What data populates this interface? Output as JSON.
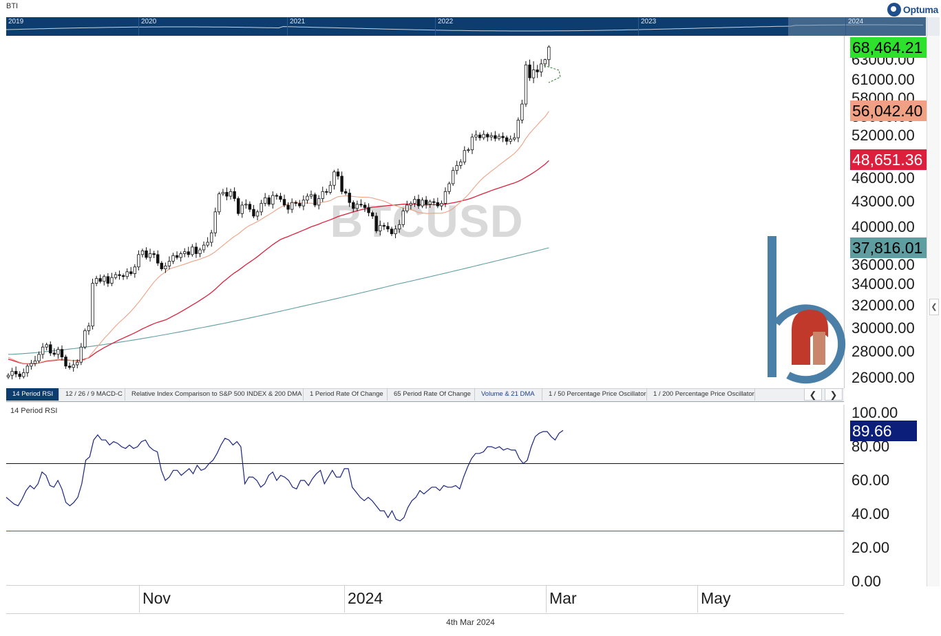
{
  "symbol": "BTI",
  "brand": "Optuma",
  "navigator": {
    "years": [
      "2019",
      "2020",
      "2021",
      "2022",
      "2023",
      "2024"
    ]
  },
  "watermark": "BTCUSD",
  "price_axis": {
    "ticks": [
      "63000.00",
      "61000.00",
      "58000.00",
      "55000.00",
      "52000.00",
      "49000.00",
      "46000.00",
      "43000.00",
      "40000.00",
      "36000.00",
      "34000.00",
      "32000.00",
      "30000.00",
      "28000.00",
      "26000.00"
    ]
  },
  "price_tags": [
    {
      "label": "68,464.21",
      "value": 68464.21,
      "bg": "#2de12d",
      "fg": "#000000"
    },
    {
      "label": "56,042.40",
      "value": 56042.4,
      "bg": "#f0a184",
      "fg": "#000000"
    },
    {
      "label": "48,651.36",
      "value": 48651.36,
      "bg": "#dc1f3c",
      "fg": "#ffffff"
    },
    {
      "label": "37,816.01",
      "value": 37816.01,
      "bg": "#5f9ea0",
      "fg": "#000000"
    }
  ],
  "tabs": [
    "14 Period RSI",
    "12 / 26 / 9 MACD-C",
    "Relative Index Comparison to S&P 500 INDEX & 200 DMA",
    "1 Period Rate Of Change",
    "65 Period Rate Of Change",
    "Volume & 21 DMA",
    "1 / 50 Percentage Price Oscillator",
    "1 / 200 Percentage Price Oscillator"
  ],
  "tab_nav": {
    "prev": "❮",
    "next": "❯"
  },
  "rsi": {
    "title": "14 Period RSI",
    "ticks": [
      "100.00",
      "80.00",
      "60.00",
      "40.00",
      "20.00",
      "0.00"
    ],
    "last_label": "89.66",
    "overbought": 70,
    "oversold": 30
  },
  "time_axis": {
    "months": [
      "Nov",
      "2024",
      "Mar",
      "May"
    ]
  },
  "footer_date": "4th Mar 2024",
  "colors": {
    "navigator_bg": "#0d3c6e",
    "ma21": "#f0a184",
    "ma50": "#dc1f3c",
    "ma200": "#5f9ea0",
    "rsi_line": "#1a237e",
    "rsi_tag_bg": "#0b1f7a",
    "overbought_line": "#111111",
    "oversold_line": "#2e7d32",
    "logo_blue": "#4a7fa8",
    "logo_red": "#c0392b",
    "logo_tan": "#c8876b"
  },
  "chart_data": [
    {
      "type": "candlestick",
      "title": "BTCUSD",
      "xlabel": "",
      "ylabel": "",
      "ylim": [
        25000,
        70000
      ],
      "x_start": "2023-09-13",
      "x_end": "2024-03-04",
      "x_tick_labels": [
        "Nov",
        "2024",
        "Mar",
        "May"
      ],
      "series": [
        {
          "kind": "price",
          "close": [
            26200,
            26500,
            26300,
            26100,
            26400,
            26900,
            27100,
            27300,
            27800,
            28400,
            28600,
            27900,
            27800,
            28200,
            27600,
            26900,
            26800,
            27000,
            27200,
            28400,
            29800,
            30200,
            34100,
            34600,
            34300,
            34800,
            34100,
            34700,
            35000,
            34900,
            34800,
            35300,
            35100,
            35800,
            37100,
            37500,
            36800,
            37200,
            37100,
            36200,
            35600,
            35900,
            36400,
            37000,
            36800,
            37200,
            37400,
            37100,
            37900,
            37200,
            37600,
            38100,
            38400,
            39400,
            41800,
            44000,
            44200,
            43700,
            44300,
            43400,
            41600,
            42600,
            42700,
            42100,
            41300,
            41800,
            42800,
            43500,
            42700,
            43800,
            43700,
            43300,
            42600,
            42100,
            42900,
            42800,
            42500,
            43200,
            43700,
            43900,
            42600,
            43400,
            44300,
            44200,
            45100,
            46900,
            46300,
            44300,
            44100,
            42900,
            42200,
            42700,
            42600,
            42300,
            41700,
            41300,
            39600,
            40200,
            40100,
            39800,
            39300,
            39800,
            40300,
            41900,
            42600,
            42800,
            43300,
            42500,
            43200,
            42700,
            43000,
            42900,
            42500,
            42800,
            44300,
            45300,
            47100,
            47800,
            48300,
            49900,
            50000,
            51800,
            52100,
            51700,
            52200,
            51800,
            52000,
            51600,
            51900,
            51700,
            51200,
            51500,
            51700,
            54500,
            57100,
            62500,
            61200,
            62000,
            61800,
            62600,
            63100,
            68400
          ]
        },
        {
          "kind": "ma",
          "period": 21,
          "name": "21 DMA",
          "last": 56042.4
        },
        {
          "kind": "ma",
          "period": 50,
          "name": "50 DMA",
          "last": 48651.36
        },
        {
          "kind": "ma",
          "period": 200,
          "name": "200 DMA",
          "last": 37816.01
        }
      ],
      "last_close": 68464.21
    },
    {
      "type": "line",
      "title": "14 Period RSI",
      "ylim": [
        0,
        100
      ],
      "reference_lines": [
        70,
        30
      ],
      "series": [
        {
          "name": "RSI",
          "values": [
            50,
            48,
            46,
            45,
            49,
            54,
            57,
            55,
            58,
            65,
            63,
            57,
            56,
            60,
            55,
            47,
            45,
            47,
            50,
            58,
            72,
            74,
            84,
            87,
            84,
            84,
            81,
            83,
            82,
            80,
            79,
            81,
            79,
            80,
            83,
            84,
            80,
            78,
            77,
            66,
            60,
            62,
            66,
            66,
            63,
            65,
            67,
            64,
            69,
            66,
            67,
            70,
            72,
            76,
            81,
            85,
            84,
            81,
            83,
            80,
            58,
            62,
            62,
            60,
            56,
            58,
            63,
            65,
            60,
            63,
            62,
            60,
            56,
            55,
            60,
            60,
            57,
            61,
            64,
            66,
            58,
            62,
            66,
            62,
            62,
            67,
            67,
            56,
            53,
            50,
            48,
            50,
            48,
            45,
            42,
            42,
            38,
            42,
            37,
            36,
            38,
            44,
            48,
            50,
            54,
            52,
            54,
            56,
            56,
            54,
            57,
            56,
            56,
            57,
            55,
            62,
            68,
            73,
            76,
            76,
            77,
            80,
            80,
            79,
            80,
            78,
            79,
            78,
            78,
            73,
            70,
            72,
            80,
            86,
            88,
            89,
            89,
            86,
            84,
            88,
            89.66
          ]
        }
      ],
      "last_value": 89.66
    }
  ]
}
